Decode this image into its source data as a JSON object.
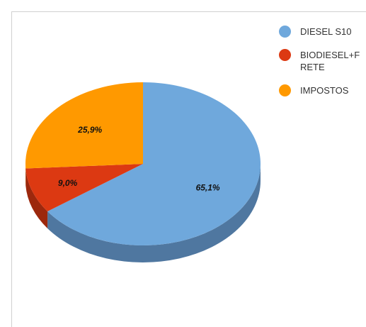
{
  "chart_data": {
    "type": "pie",
    "style": "3d",
    "title": "",
    "slices": [
      {
        "label": "DIESEL S10",
        "value": 65.1,
        "display": "65,1%",
        "color": "#6fa8dc",
        "side_color": "#4f77a0"
      },
      {
        "label": "BIODIESEL+FRETE",
        "value": 9.0,
        "display": "9,0%",
        "color": "#dc3912",
        "side_color": "#9c280d"
      },
      {
        "label": "IMPOSTOS",
        "value": 25.9,
        "display": "25,9%",
        "color": "#ff9900",
        "side_color": "#b56d00"
      }
    ],
    "legend": {
      "position": "right"
    }
  }
}
